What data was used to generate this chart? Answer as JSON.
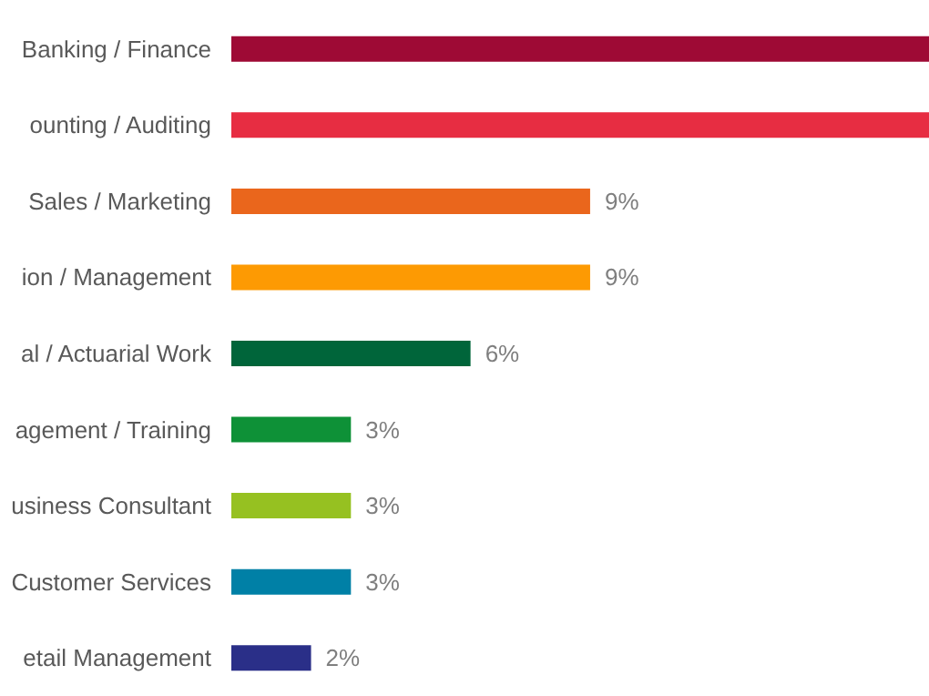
{
  "chart_data": {
    "type": "bar",
    "orientation": "horizontal",
    "categories": [
      "Banking / Finance",
      "ounting / Auditing",
      "Sales / Marketing",
      "ion / Management",
      "al / Actuarial Work",
      "agement / Training",
      "usiness Consultant",
      "Customer Services",
      "etail Management"
    ],
    "values": [
      17.5,
      17.5,
      9,
      9,
      6,
      3,
      3,
      3,
      2
    ],
    "value_labels": [
      null,
      null,
      "9%",
      "9%",
      "6%",
      "3%",
      "3%",
      "3%",
      "2%"
    ],
    "colors": [
      "#9e0a35",
      "#e72d42",
      "#ea661c",
      "#fd9a03",
      "#00653a",
      "#0e9137",
      "#96c121",
      "#0080a6",
      "#2a2f88"
    ],
    "xlim": [
      0,
      17.5
    ],
    "tick_labels": "y"
  }
}
